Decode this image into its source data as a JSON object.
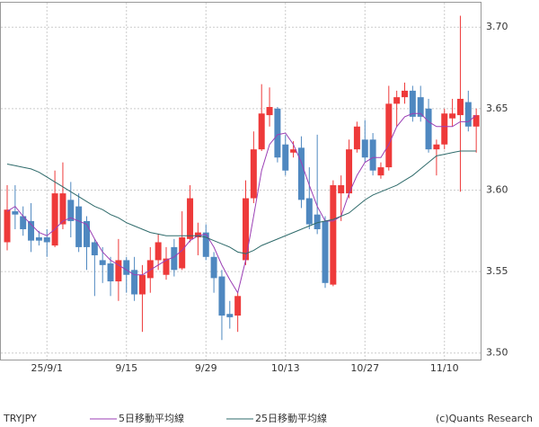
{
  "chart_data": {
    "type": "candlestick",
    "categories": [
      null,
      null,
      null,
      null,
      null,
      "25/9/1",
      null,
      null,
      null,
      null,
      null,
      null,
      null,
      null,
      null,
      "9/15",
      null,
      null,
      null,
      null,
      null,
      null,
      null,
      null,
      null,
      "9/29",
      null,
      null,
      null,
      null,
      null,
      null,
      null,
      null,
      null,
      "10/13",
      null,
      null,
      null,
      null,
      null,
      null,
      null,
      null,
      null,
      "10/27",
      null,
      null,
      null,
      null,
      null,
      null,
      null,
      null,
      null,
      "11/10",
      null,
      null,
      null,
      null
    ],
    "ohlc": {
      "name": "TRYJPY",
      "up_color": "#ee3a3a",
      "down_color": "#4f88c0",
      "open": [
        3.568,
        3.587,
        3.584,
        3.581,
        3.571,
        3.571,
        3.566,
        3.579,
        3.594,
        3.59,
        3.581,
        3.568,
        3.557,
        3.555,
        3.544,
        3.557,
        3.551,
        3.536,
        3.546,
        3.557,
        3.548,
        3.565,
        3.552,
        3.57,
        3.571,
        3.574,
        3.559,
        3.547,
        3.524,
        3.523,
        3.557,
        3.595,
        3.625,
        3.646,
        3.65,
        3.628,
        3.623,
        3.626,
        3.595,
        3.585,
        3.581,
        3.542,
        3.598,
        3.598,
        3.625,
        3.631,
        3.631,
        3.609,
        3.614,
        3.653,
        3.657,
        3.661,
        3.657,
        3.65,
        3.625,
        3.628,
        3.644,
        3.646,
        3.654,
        3.639
      ],
      "high": [
        3.603,
        3.603,
        3.59,
        3.592,
        3.575,
        3.576,
        3.612,
        3.617,
        3.605,
        3.598,
        3.584,
        3.57,
        3.565,
        3.559,
        3.57,
        3.559,
        3.559,
        3.554,
        3.565,
        3.573,
        3.565,
        3.57,
        3.587,
        3.603,
        3.58,
        3.579,
        3.562,
        3.551,
        3.532,
        3.537,
        3.606,
        3.636,
        3.665,
        3.663,
        3.651,
        3.634,
        3.63,
        3.633,
        3.614,
        3.634,
        3.584,
        3.606,
        3.609,
        3.631,
        3.642,
        3.643,
        3.635,
        3.617,
        3.664,
        3.661,
        3.666,
        3.664,
        3.664,
        3.656,
        3.631,
        3.65,
        3.656,
        3.707,
        3.661,
        3.65
      ],
      "low": [
        3.563,
        3.576,
        3.572,
        3.562,
        3.566,
        3.559,
        3.565,
        3.576,
        3.571,
        3.562,
        3.551,
        3.535,
        3.543,
        3.535,
        3.532,
        3.537,
        3.532,
        3.513,
        3.537,
        3.551,
        3.545,
        3.547,
        3.551,
        3.568,
        3.56,
        3.557,
        3.537,
        3.508,
        3.515,
        3.513,
        3.554,
        3.592,
        3.624,
        3.639,
        3.617,
        3.609,
        3.62,
        3.589,
        3.576,
        3.573,
        3.54,
        3.541,
        3.581,
        3.595,
        3.623,
        3.617,
        3.609,
        3.607,
        3.612,
        3.639,
        3.653,
        3.642,
        3.642,
        3.623,
        3.609,
        3.625,
        3.639,
        3.599,
        3.636,
        3.623
      ],
      "close": [
        3.588,
        3.585,
        3.576,
        3.569,
        3.569,
        3.568,
        3.598,
        3.598,
        3.581,
        3.565,
        3.565,
        3.56,
        3.554,
        3.544,
        3.557,
        3.548,
        3.536,
        3.548,
        3.557,
        3.568,
        3.558,
        3.551,
        3.571,
        3.595,
        3.574,
        3.559,
        3.546,
        3.523,
        3.522,
        3.535,
        3.595,
        3.625,
        3.647,
        3.651,
        3.62,
        3.612,
        3.625,
        3.594,
        3.579,
        3.576,
        3.543,
        3.603,
        3.603,
        3.625,
        3.639,
        3.62,
        3.612,
        3.614,
        3.653,
        3.657,
        3.661,
        3.645,
        3.645,
        3.625,
        3.628,
        3.647,
        3.647,
        3.656,
        3.639,
        3.646
      ]
    },
    "series": [
      {
        "name": "5日移動平均線",
        "color": "#9b3fb5",
        "values": [
          3.587,
          3.59,
          3.584,
          3.579,
          3.574,
          3.572,
          3.576,
          3.581,
          3.583,
          3.581,
          3.579,
          3.57,
          3.562,
          3.557,
          3.554,
          3.551,
          3.548,
          3.548,
          3.551,
          3.554,
          3.557,
          3.559,
          3.563,
          3.569,
          3.572,
          3.573,
          3.565,
          3.554,
          3.545,
          3.537,
          3.557,
          3.584,
          3.612,
          3.628,
          3.634,
          3.635,
          3.628,
          3.617,
          3.603,
          3.59,
          3.581,
          3.581,
          3.584,
          3.598,
          3.609,
          3.617,
          3.62,
          3.62,
          3.628,
          3.639,
          3.645,
          3.647,
          3.647,
          3.642,
          3.639,
          3.639,
          3.639,
          3.642,
          3.642,
          3.646
        ]
      },
      {
        "name": "25日移動平均線",
        "color": "#2f6b6b",
        "values": [
          3.616,
          3.615,
          3.614,
          3.613,
          3.611,
          3.608,
          3.605,
          3.602,
          3.599,
          3.596,
          3.593,
          3.59,
          3.588,
          3.585,
          3.583,
          3.58,
          3.578,
          3.576,
          3.574,
          3.573,
          3.572,
          3.572,
          3.572,
          3.572,
          3.572,
          3.571,
          3.569,
          3.567,
          3.565,
          3.562,
          3.561,
          3.563,
          3.566,
          3.568,
          3.57,
          3.572,
          3.574,
          3.576,
          3.578,
          3.58,
          3.581,
          3.582,
          3.584,
          3.586,
          3.59,
          3.594,
          3.597,
          3.599,
          3.601,
          3.603,
          3.606,
          3.609,
          3.613,
          3.617,
          3.621,
          3.622,
          3.623,
          3.624,
          3.624,
          3.624
        ]
      }
    ],
    "ylim": [
      3.496,
      3.715
    ],
    "yticks": [
      {
        "value": 3.5,
        "label": "3.50"
      },
      3.55,
      {
        "value": 3.6,
        "label": "3.60"
      },
      3.65,
      {
        "value": 3.7,
        "label": "3.70"
      }
    ],
    "grid": true,
    "credit": "(c)Quants Research"
  }
}
